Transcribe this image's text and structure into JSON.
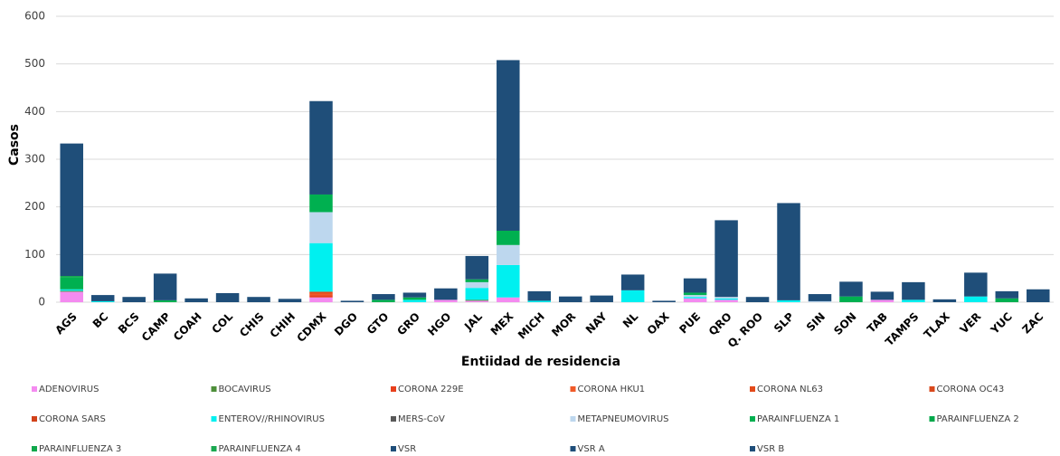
{
  "chart_data": {
    "type": "stacked-bar",
    "y_label": "Casos",
    "x_label": "Entiidad de  residencia",
    "categories": [
      "AGS",
      "BC",
      "BCS",
      "CAMP",
      "COAH",
      "COL",
      "CHIS",
      "CHIH",
      "CDMX",
      "DGO",
      "GTO",
      "GRO",
      "HGO",
      "JAL",
      "MEX",
      "MICH",
      "MOR",
      "NAY",
      "NL",
      "OAX",
      "PUE",
      "QRO",
      "Q. ROO",
      "SLP",
      "SIN",
      "SON",
      "TAB",
      "TAMPS",
      "TLAX",
      "VER",
      "YUC",
      "ZAC"
    ],
    "ylim": [
      0,
      600
    ],
    "yticks": [
      0,
      100,
      200,
      300,
      400,
      500,
      600
    ],
    "grid": true,
    "series": [
      {
        "name": "ADENOVIRUS",
        "color": "#f48bf0",
        "values": [
          22,
          0,
          0,
          0,
          0,
          0,
          0,
          0,
          10,
          0,
          0,
          0,
          5,
          3,
          10,
          0,
          0,
          0,
          0,
          0,
          8,
          5,
          0,
          0,
          0,
          0,
          5,
          0,
          0,
          0,
          0,
          0
        ]
      },
      {
        "name": "BOCAVIRUS",
        "color": "#4e8f3a",
        "values": [
          2,
          0,
          0,
          0,
          0,
          0,
          0,
          0,
          0,
          0,
          0,
          0,
          0,
          2,
          0,
          0,
          0,
          0,
          0,
          0,
          0,
          0,
          0,
          0,
          0,
          0,
          0,
          0,
          0,
          0,
          0,
          0
        ]
      },
      {
        "name": "CORONA 229E",
        "color": "#e8401c",
        "values": [
          0,
          0,
          0,
          0,
          0,
          0,
          0,
          0,
          5,
          0,
          0,
          0,
          0,
          0,
          0,
          0,
          0,
          0,
          0,
          0,
          0,
          0,
          0,
          0,
          0,
          0,
          0,
          0,
          0,
          0,
          0,
          0
        ]
      },
      {
        "name": "CORONA HKU1",
        "color": "#f05a28",
        "values": [
          0,
          0,
          0,
          0,
          0,
          0,
          0,
          0,
          3,
          0,
          0,
          0,
          0,
          0,
          0,
          0,
          0,
          0,
          0,
          0,
          0,
          0,
          0,
          0,
          0,
          0,
          0,
          0,
          0,
          0,
          0,
          0
        ]
      },
      {
        "name": "CORONA NL63",
        "color": "#e34a1a",
        "values": [
          0,
          0,
          0,
          0,
          0,
          0,
          0,
          0,
          4,
          0,
          0,
          0,
          0,
          0,
          0,
          0,
          0,
          0,
          0,
          0,
          0,
          0,
          0,
          0,
          0,
          0,
          0,
          0,
          0,
          0,
          0,
          0
        ]
      },
      {
        "name": "CORONA OC43",
        "color": "#d9481c",
        "values": [
          0,
          0,
          0,
          0,
          0,
          0,
          0,
          0,
          0,
          0,
          0,
          0,
          0,
          0,
          0,
          0,
          0,
          0,
          0,
          0,
          0,
          0,
          0,
          0,
          0,
          0,
          0,
          0,
          0,
          0,
          0,
          0
        ]
      },
      {
        "name": "CORONA SARS",
        "color": "#d2421a",
        "values": [
          0,
          0,
          0,
          0,
          0,
          0,
          0,
          0,
          0,
          0,
          0,
          0,
          0,
          0,
          0,
          0,
          0,
          0,
          0,
          0,
          0,
          0,
          0,
          0,
          0,
          0,
          0,
          0,
          0,
          0,
          0,
          0
        ]
      },
      {
        "name": "ENTEROV//RHINOVIRUS",
        "color": "#00f0f0",
        "values": [
          3,
          2,
          0,
          0,
          0,
          0,
          0,
          0,
          102,
          0,
          0,
          5,
          0,
          25,
          68,
          3,
          0,
          0,
          25,
          0,
          3,
          3,
          0,
          4,
          0,
          0,
          0,
          5,
          0,
          12,
          0,
          0
        ]
      },
      {
        "name": "MERS-CoV",
        "color": "#595959",
        "values": [
          0,
          0,
          0,
          0,
          0,
          0,
          0,
          0,
          0,
          0,
          0,
          0,
          0,
          0,
          0,
          0,
          0,
          0,
          0,
          0,
          0,
          0,
          0,
          0,
          0,
          0,
          0,
          0,
          0,
          0,
          0,
          0
        ]
      },
      {
        "name": "METAPNEUMOVIRUS",
        "color": "#bdd7ee",
        "values": [
          0,
          0,
          0,
          0,
          0,
          0,
          0,
          0,
          65,
          0,
          0,
          0,
          0,
          12,
          42,
          0,
          0,
          0,
          0,
          0,
          4,
          3,
          0,
          0,
          2,
          0,
          0,
          0,
          0,
          0,
          0,
          0
        ]
      },
      {
        "name": "PARAINFLUENZA 1",
        "color": "#00b050",
        "values": [
          25,
          0,
          0,
          4,
          0,
          0,
          0,
          0,
          37,
          0,
          5,
          5,
          0,
          6,
          30,
          0,
          0,
          0,
          0,
          0,
          5,
          0,
          0,
          0,
          0,
          12,
          0,
          0,
          0,
          0,
          8,
          0
        ]
      },
      {
        "name": "PARAINFLUENZA 2",
        "color": "#00a84a",
        "values": [
          0,
          0,
          0,
          0,
          0,
          0,
          0,
          0,
          0,
          0,
          0,
          0,
          0,
          0,
          0,
          0,
          0,
          0,
          0,
          0,
          0,
          0,
          0,
          0,
          0,
          0,
          0,
          0,
          0,
          0,
          0,
          0
        ]
      },
      {
        "name": "PARAINFLUENZA 3",
        "color": "#10a84c",
        "values": [
          3,
          0,
          0,
          0,
          0,
          0,
          0,
          0,
          0,
          0,
          0,
          0,
          0,
          0,
          0,
          0,
          0,
          0,
          0,
          0,
          0,
          0,
          0,
          0,
          0,
          0,
          0,
          0,
          0,
          0,
          0,
          0
        ]
      },
      {
        "name": "PARAINFLUENZA 4",
        "color": "#1aa850",
        "values": [
          0,
          0,
          0,
          0,
          0,
          0,
          0,
          0,
          0,
          0,
          0,
          0,
          0,
          0,
          0,
          0,
          0,
          0,
          0,
          0,
          0,
          0,
          0,
          0,
          0,
          0,
          0,
          0,
          0,
          0,
          0,
          0
        ]
      },
      {
        "name": "VSR",
        "color": "#1f4e79",
        "values": [
          278,
          13,
          11,
          56,
          8,
          19,
          11,
          7,
          196,
          3,
          12,
          10,
          24,
          49,
          358,
          20,
          12,
          14,
          33,
          3,
          30,
          161,
          11,
          204,
          15,
          31,
          17,
          37,
          6,
          50,
          15,
          27
        ]
      },
      {
        "name": "VSR A",
        "color": "#1f4e79",
        "values": [
          0,
          0,
          0,
          0,
          0,
          0,
          0,
          0,
          0,
          0,
          0,
          0,
          0,
          0,
          0,
          0,
          0,
          0,
          0,
          0,
          0,
          0,
          0,
          0,
          0,
          0,
          0,
          0,
          0,
          0,
          0,
          0
        ]
      },
      {
        "name": "VSR B",
        "color": "#1f4e79",
        "values": [
          0,
          0,
          0,
          0,
          0,
          0,
          0,
          0,
          0,
          0,
          0,
          0,
          0,
          0,
          0,
          0,
          0,
          0,
          0,
          0,
          0,
          0,
          0,
          0,
          0,
          0,
          0,
          0,
          0,
          0,
          0,
          0
        ]
      }
    ]
  }
}
